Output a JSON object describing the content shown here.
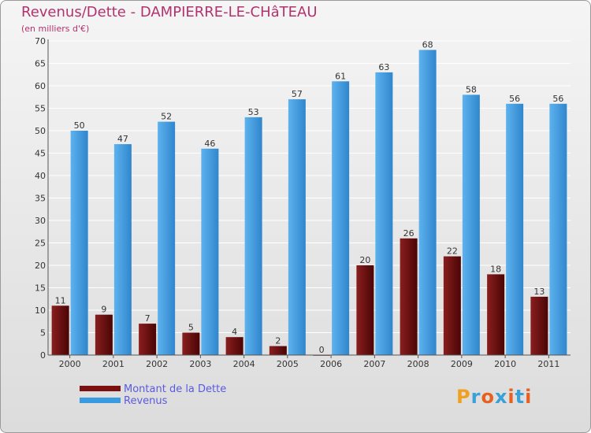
{
  "title": "Revenus/Dette - DAMPIERRE-LE-CHâTEAU",
  "subtitle": "(en milliers d'€)",
  "logo": {
    "text": "Proxiti",
    "colors": [
      "#f0a020",
      "#3aa0d8",
      "#e86020",
      "#3aa0d8",
      "#e86020",
      "#3aa0d8",
      "#e86020"
    ]
  },
  "colors": {
    "debt": "#7a1010",
    "revenue": "#3a9ae0",
    "title": "#b3326e",
    "legend_text": "#5a5ae0"
  },
  "chart_data": {
    "type": "bar",
    "categories": [
      "2000",
      "2001",
      "2002",
      "2003",
      "2004",
      "2005",
      "2006",
      "2007",
      "2008",
      "2009",
      "2010",
      "2011"
    ],
    "series": [
      {
        "name": "Montant de la Dette",
        "values": [
          11,
          9,
          7,
          5,
          4,
          2,
          0,
          20,
          26,
          22,
          18,
          13
        ]
      },
      {
        "name": "Revenus",
        "values": [
          50,
          47,
          52,
          46,
          53,
          57,
          61,
          63,
          68,
          58,
          56,
          56
        ]
      }
    ],
    "ylim": [
      0,
      70
    ],
    "yticks": [
      0,
      5,
      10,
      15,
      20,
      25,
      30,
      35,
      40,
      45,
      50,
      55,
      60,
      65,
      70
    ],
    "grid": true,
    "legend_position": "bottom-left"
  }
}
